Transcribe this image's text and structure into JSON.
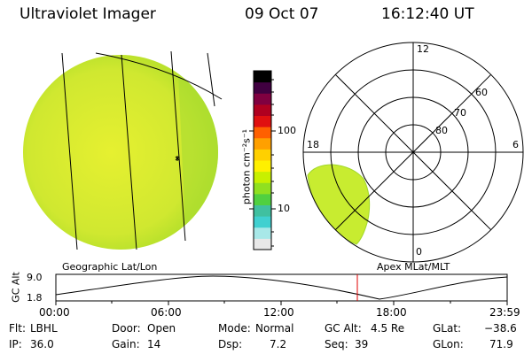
{
  "header": {
    "instrument": "Ultraviolet Imager",
    "date": "09 Oct 07",
    "time": "16:12:40 UT"
  },
  "colorbar": {
    "unit_label": "photon cm⁻²s⁻¹",
    "tick_100": "100",
    "tick_10": "10",
    "stops": [
      "#e8e8e8",
      "#a8e8e8",
      "#40d0d0",
      "#40c0a0",
      "#50d040",
      "#90e020",
      "#c8f000",
      "#fff000",
      "#ffd000",
      "#ffa000",
      "#ff6000",
      "#e01010",
      "#b00020",
      "#800040",
      "#400040",
      "#000000"
    ]
  },
  "panels": {
    "left_label": "Geographic Lat/Lon",
    "right_label": "Apex  MLat/MLT",
    "polar_hours": {
      "top": "12",
      "left": "18",
      "right": "6",
      "bottom": "0"
    },
    "polar_lats": {
      "l60": "60",
      "l70": "70",
      "l80": "80"
    }
  },
  "alt_plot": {
    "ylabel": "GC Alt",
    "ymax": "9.0",
    "ymin": "1.8",
    "xticks": [
      "00:00",
      "06:00",
      "12:00",
      "18:00",
      "23:59"
    ],
    "current_marker_color": "#e00000"
  },
  "info": {
    "flt_label": "Flt:",
    "flt": "LBHL",
    "door_label": "Door:",
    "door": "Open",
    "mode_label": "Mode:",
    "mode": "Normal",
    "gcalt_label": "GC Alt:",
    "gcalt": "4.5 Re",
    "glat_label": "GLat:",
    "glat": "−38.6",
    "ip_label": "IP:",
    "ip": "36.0",
    "gain_label": "Gain:",
    "gain": "14",
    "dsp_label": "Dsp:",
    "dsp": "7.2",
    "seq_label": "Seq:",
    "seq": "39",
    "glon_label": "GLon:",
    "glon": "71.9"
  }
}
